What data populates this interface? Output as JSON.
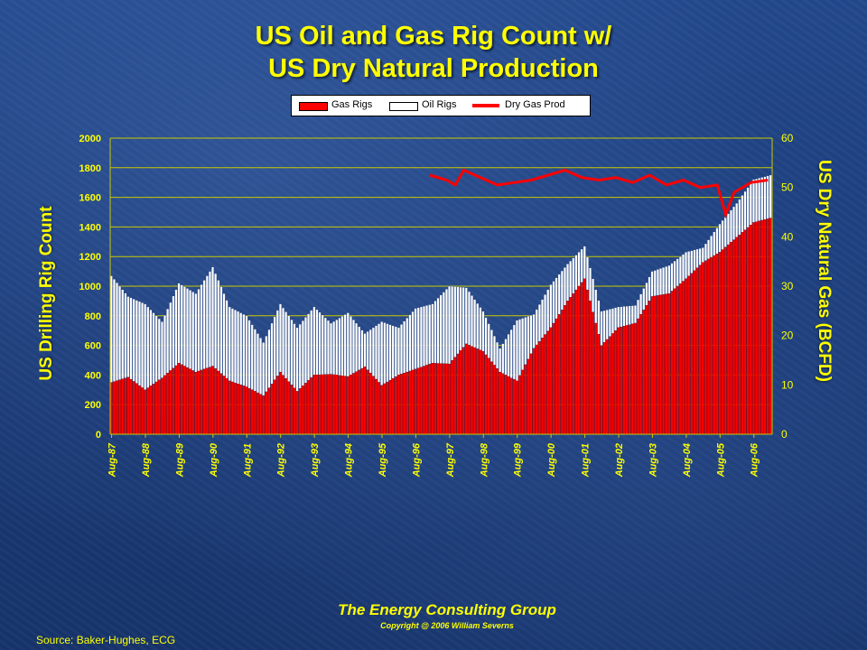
{
  "chart_data": {
    "type": "bar",
    "title": "US Oil and Gas Rig Count w/",
    "subtitle": "US Dry Natural Production",
    "ylabel": "US Drilling Rig Count",
    "y2label": "US Dry Natural Gas (BCFD)",
    "ylim": [
      0,
      2000
    ],
    "y2lim": [
      0,
      60
    ],
    "yticks": [
      0,
      200,
      400,
      600,
      800,
      1000,
      1200,
      1400,
      1600,
      1800,
      2000
    ],
    "y2ticks": [
      0,
      10,
      20,
      30,
      40,
      50,
      60
    ],
    "xticks": [
      "Aug-87",
      "Aug-88",
      "Aug-89",
      "Aug-90",
      "Aug-91",
      "Aug-92",
      "Aug-93",
      "Aug-94",
      "Aug-95",
      "Aug-96",
      "Aug-97",
      "Aug-98",
      "Aug-99",
      "Aug-00",
      "Aug-01",
      "Aug-02",
      "Aug-03",
      "Aug-04",
      "Aug-05",
      "Aug-06"
    ],
    "x_start": "Aug-87",
    "x_end": "Feb-07",
    "grid": true,
    "stacked": true,
    "legend_position": "top",
    "series": [
      {
        "name": "Gas Rigs",
        "kind": "bar",
        "color": "#ff0000",
        "x": [
          "Aug-87",
          "Feb-88",
          "Aug-88",
          "Feb-89",
          "Aug-89",
          "Feb-90",
          "Aug-90",
          "Feb-91",
          "Aug-91",
          "Feb-92",
          "Aug-92",
          "Feb-93",
          "Aug-93",
          "Feb-94",
          "Aug-94",
          "Feb-95",
          "Aug-95",
          "Feb-96",
          "Aug-96",
          "Feb-97",
          "Aug-97",
          "Feb-98",
          "Aug-98",
          "Feb-99",
          "Aug-99",
          "Feb-00",
          "Aug-00",
          "Feb-01",
          "Aug-01",
          "Feb-02",
          "Aug-02",
          "Feb-03",
          "Aug-03",
          "Feb-04",
          "Aug-04",
          "Feb-05",
          "Aug-05",
          "Feb-06",
          "Aug-06",
          "Feb-07"
        ],
        "values": [
          350,
          385,
          300,
          380,
          480,
          420,
          460,
          360,
          320,
          260,
          420,
          290,
          400,
          405,
          390,
          455,
          330,
          400,
          440,
          480,
          475,
          610,
          560,
          420,
          360,
          580,
          720,
          900,
          1050,
          600,
          720,
          750,
          930,
          950,
          1050,
          1160,
          1230,
          1330,
          1430,
          1460
        ]
      },
      {
        "name": "Oil Rigs",
        "kind": "bar",
        "color": "#ffffff",
        "x": [
          "Aug-87",
          "Feb-88",
          "Aug-88",
          "Feb-89",
          "Aug-89",
          "Feb-90",
          "Aug-90",
          "Feb-91",
          "Aug-91",
          "Feb-92",
          "Aug-92",
          "Feb-93",
          "Aug-93",
          "Feb-94",
          "Aug-94",
          "Feb-95",
          "Aug-95",
          "Feb-96",
          "Aug-96",
          "Feb-97",
          "Aug-97",
          "Feb-98",
          "Aug-98",
          "Feb-99",
          "Aug-99",
          "Feb-00",
          "Aug-00",
          "Feb-01",
          "Aug-01",
          "Feb-02",
          "Aug-02",
          "Feb-03",
          "Aug-03",
          "Feb-04",
          "Aug-04",
          "Feb-05",
          "Aug-05",
          "Feb-06",
          "Aug-06",
          "Feb-07"
        ],
        "totals": [
          1070,
          930,
          880,
          760,
          1020,
          950,
          1130,
          860,
          800,
          620,
          880,
          720,
          860,
          750,
          820,
          680,
          760,
          720,
          850,
          880,
          1000,
          990,
          830,
          580,
          770,
          810,
          1010,
          1150,
          1270,
          830,
          860,
          870,
          1100,
          1140,
          1230,
          1260,
          1420,
          1560,
          1720,
          1750
        ]
      },
      {
        "name": "Dry Gas Prod",
        "kind": "line",
        "axis": "right",
        "color": "#ff0000",
        "x": [
          "Jan-97",
          "Jul-97",
          "Oct-97",
          "Jan-98",
          "Jul-98",
          "Jan-99",
          "Jul-99",
          "Jan-00",
          "Jul-00",
          "Jan-01",
          "Jul-01",
          "Jan-02",
          "Jul-02",
          "Jan-03",
          "Jul-03",
          "Jan-04",
          "Jul-04",
          "Jan-05",
          "Jul-05",
          "Oct-05",
          "Jan-06",
          "Jul-06",
          "Jan-07"
        ],
        "values": [
          52.5,
          51.5,
          50.5,
          53.5,
          52.0,
          50.5,
          51.0,
          51.5,
          52.5,
          53.5,
          52.0,
          51.5,
          52.0,
          51.0,
          52.5,
          50.5,
          51.5,
          50.0,
          50.5,
          44.5,
          49.0,
          51.0,
          51.5
        ]
      }
    ]
  },
  "footer": {
    "org": "The Energy Consulting Group",
    "copyright": "Copyright @ 2006 William Severns",
    "source": "Source:  Baker-Hughes, ECG"
  }
}
